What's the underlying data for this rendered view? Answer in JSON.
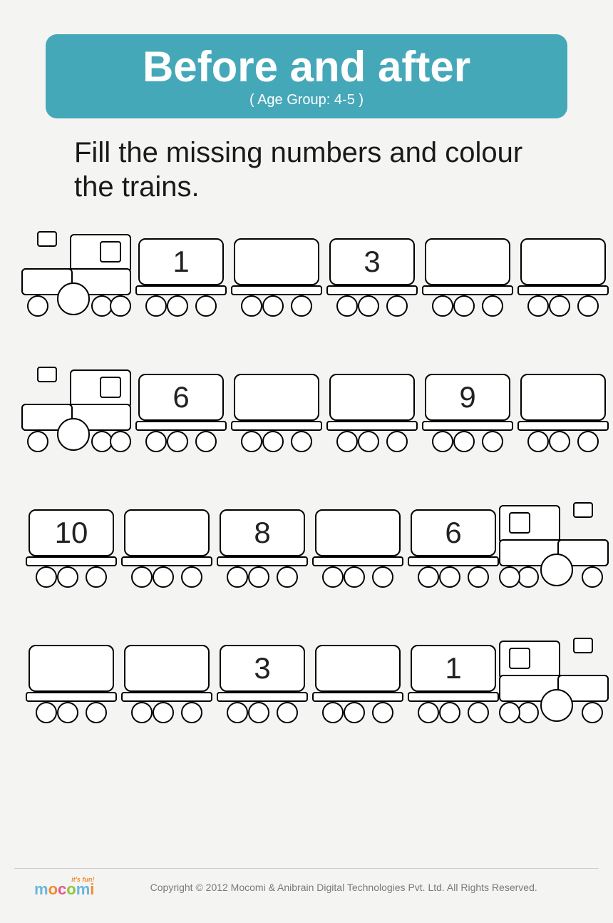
{
  "header": {
    "title": "Before and after",
    "subtitle": "( Age Group:  4-5 )",
    "banner_color": "#45a8b8",
    "title_color": "#ffffff",
    "title_fontsize": 60,
    "subtitle_fontsize": 20,
    "border_radius": 16
  },
  "instruction": {
    "text": "Fill the missing numbers and colour the trains.",
    "fontsize": 40,
    "color": "#1a1a1a"
  },
  "worksheet": {
    "type": "infographic",
    "background_color": "#f4f4f3",
    "stroke_color": "#000000",
    "fill_color": "#ffffff",
    "number_fontsize": 42,
    "wagon_width": 128,
    "wagon_box_height": 66,
    "wheel_diameter": 30,
    "engine_width": 154,
    "row_gap": 70,
    "trains": [
      {
        "engine": "left",
        "wagons": [
          "1",
          "",
          "3",
          "",
          ""
        ]
      },
      {
        "engine": "left",
        "wagons": [
          "6",
          "",
          "",
          "9",
          ""
        ]
      },
      {
        "engine": "right",
        "wagons": [
          "10",
          "",
          "8",
          "",
          "6"
        ]
      },
      {
        "engine": "right",
        "wagons": [
          "",
          "",
          "3",
          "",
          "1"
        ]
      }
    ]
  },
  "footer": {
    "logo_text": "mocomi",
    "logo_tagline": "it's fun!",
    "copyright": "Copyright © 2012 Mocomi & Anibrain Digital Technologies Pvt. Ltd. All Rights Reserved.",
    "copyright_color": "#7a7a7a",
    "copyright_fontsize": 14
  }
}
